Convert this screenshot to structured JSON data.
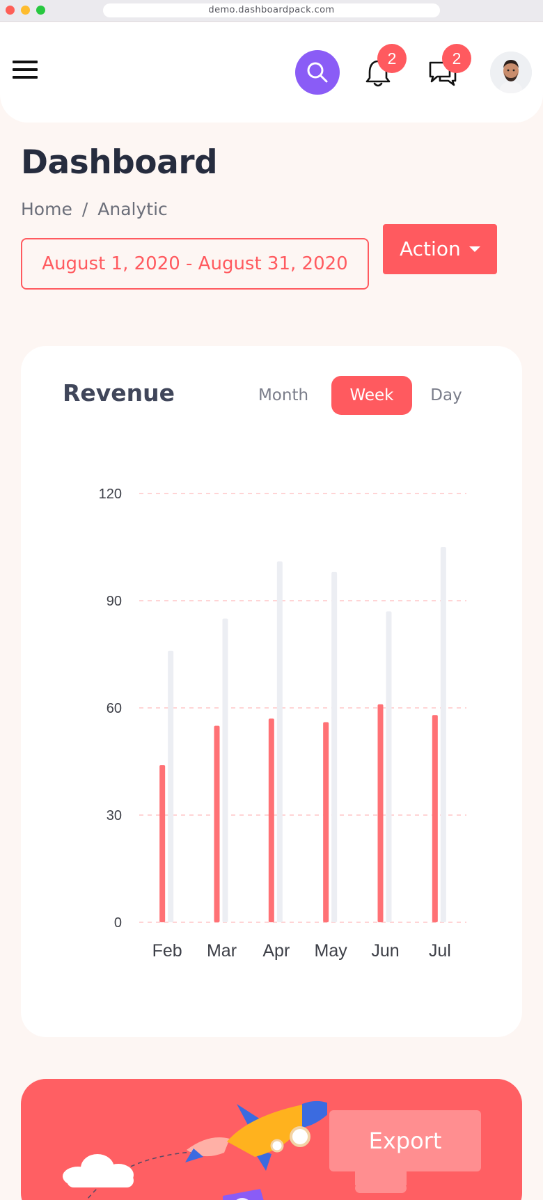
{
  "browser": {
    "url": "demo.dashboardpack.com"
  },
  "header": {
    "notifications_count": "2",
    "messages_count": "2"
  },
  "page": {
    "title": "Dashboard",
    "breadcrumb": [
      "Home",
      "Analytic"
    ],
    "date_range": "August 1, 2020 - August 31, 2020",
    "action_label": "Action"
  },
  "revenue": {
    "title": "Revenue",
    "tabs": [
      "Month",
      "Week",
      "Day"
    ],
    "active_tab": "Week"
  },
  "chart_data": {
    "type": "bar",
    "categories": [
      "Feb",
      "Mar",
      "Apr",
      "May",
      "Jun",
      "Jul"
    ],
    "series": [
      {
        "values": [
          44,
          55,
          57,
          56,
          61,
          58
        ],
        "color": "#ff7175"
      },
      {
        "values": [
          76,
          85,
          101,
          98,
          87,
          105
        ],
        "color": "#eceef3"
      }
    ],
    "yticks": [
      0,
      30,
      60,
      90,
      120
    ],
    "ylim": [
      0,
      120
    ],
    "grid": "dashed horizontal",
    "gridColor": "#ffc5c7"
  },
  "promo": {
    "button_label": "Export"
  },
  "colors": {
    "accent": "#ff5a5f",
    "purple": "#8a5cf6",
    "title": "#262c3e"
  }
}
